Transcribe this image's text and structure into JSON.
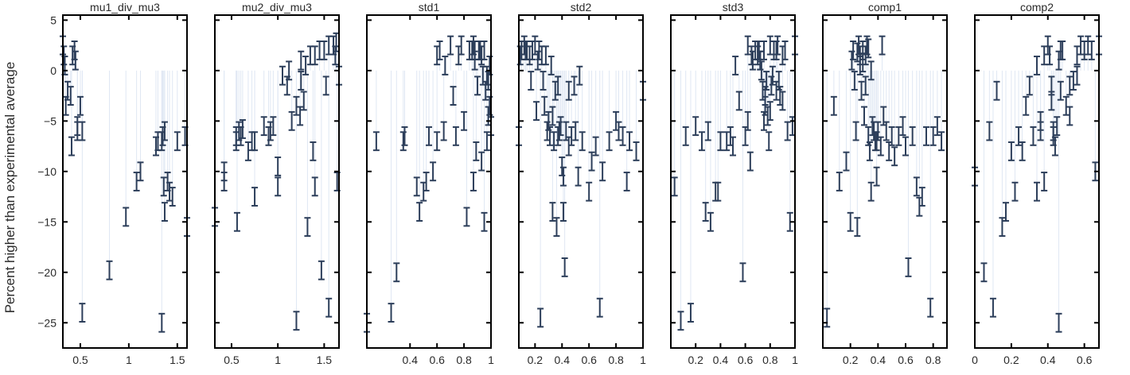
{
  "chart_data": {
    "type": "scatter",
    "ylabel": "Percent higher than experimental average",
    "ylim": [
      -27.5,
      5.5
    ],
    "yticks": [
      5,
      0,
      -5,
      -10,
      -15,
      -20,
      -25
    ],
    "colors": {
      "marker": "#2c3e5a",
      "stem": "#dfe7f3",
      "frame": "#000000",
      "text": "#2a2a2a"
    },
    "grid": false,
    "error_bar_half_width": 0.9,
    "panels": [
      {
        "title": "mu1_div_mu3",
        "xlim": [
          0.32,
          1.6
        ],
        "xticks": [
          0.5,
          1,
          1.5
        ],
        "x": [
          0.32,
          0.33,
          0.34,
          0.35,
          0.37,
          0.4,
          0.42,
          0.45,
          0.47,
          0.41,
          0.44,
          0.5,
          0.52,
          0.47,
          0.52,
          0.8,
          0.97,
          1.08,
          1.12,
          1.28,
          1.3,
          1.35,
          1.37,
          1.4,
          1.42,
          1.45,
          1.5,
          1.58,
          1.6,
          1.34,
          1.37,
          1.36,
          1.34
        ],
        "y": [
          2.5,
          1.5,
          0.5,
          -3.5,
          -2.0,
          -2.5,
          1.5,
          1.0,
          -6.0,
          -7.5,
          2.0,
          -3.5,
          -6.0,
          -5.5,
          -24.0,
          -19.8,
          -14.5,
          -11.0,
          -10.0,
          -7.5,
          -7.0,
          -6.5,
          -6.0,
          -11.0,
          -12.0,
          -12.5,
          -7.0,
          -6.5,
          -15.5,
          -25.0,
          -14.0,
          -11.5,
          -7.0
        ]
      },
      {
        "title": "mu2_div_mu3",
        "xlim": [
          0.32,
          1.66
        ],
        "xticks": [
          0.5,
          1,
          1.5
        ],
        "x": [
          0.32,
          0.42,
          0.55,
          0.58,
          0.6,
          0.68,
          0.72,
          0.75,
          0.85,
          0.9,
          0.92,
          1.0,
          1.05,
          1.1,
          1.15,
          1.2,
          1.25,
          1.3,
          1.35,
          1.4,
          1.45,
          1.5,
          1.55,
          1.6,
          1.62,
          1.66,
          0.56,
          0.75,
          1.0,
          1.2,
          1.32,
          1.4,
          1.47,
          1.55,
          1.64,
          1.25,
          1.28,
          0.42,
          0.55,
          0.62,
          0.95,
          1.38,
          1.52,
          1.63,
          1.12,
          1.24
        ],
        "y": [
          -14.5,
          -10.0,
          -7.0,
          -6.0,
          -6.5,
          -8.0,
          -7.0,
          -7.0,
          -5.5,
          -6.5,
          -6.0,
          -9.5,
          -0.5,
          -1.5,
          -5.0,
          -3.5,
          -1.0,
          0.5,
          1.5,
          1.5,
          2.0,
          2.0,
          2.5,
          2.5,
          1.5,
          -0.5,
          -15.0,
          -12.5,
          -11.5,
          -24.8,
          -15.5,
          -11.5,
          -19.8,
          -23.5,
          -11.0,
          1.0,
          -3.0,
          -11.0,
          -6.5,
          -5.8,
          -5.5,
          -8.0,
          -1.5,
          2.8,
          0.0,
          -4.5
        ]
      },
      {
        "title": "std1",
        "xlim": [
          0.08,
          1.0
        ],
        "xticks": [
          0.4,
          0.6,
          0.8,
          1
        ],
        "x": [
          0.08,
          0.15,
          0.26,
          0.3,
          0.35,
          0.36,
          0.45,
          0.47,
          0.5,
          0.52,
          0.54,
          0.57,
          0.6,
          0.6,
          0.62,
          0.65,
          0.66,
          0.7,
          0.72,
          0.74,
          0.76,
          0.78,
          0.8,
          0.82,
          0.84,
          0.86,
          0.87,
          0.88,
          0.89,
          0.9,
          0.91,
          0.92,
          0.93,
          0.94,
          0.95,
          0.96,
          0.97,
          0.98,
          0.99,
          1.0,
          0.88,
          0.93,
          0.97,
          0.95,
          0.99,
          0.98,
          0.87
        ],
        "y": [
          -25.0,
          -7.0,
          -24.0,
          -20.0,
          -7.0,
          -6.5,
          -11.5,
          -14.0,
          -12.0,
          -11.0,
          -6.5,
          -10.0,
          1.5,
          -7.0,
          2.0,
          -6.0,
          0.5,
          2.5,
          -2.5,
          -6.5,
          1.5,
          2.5,
          -5.0,
          -14.5,
          2.0,
          2.0,
          2.5,
          2.0,
          -8.0,
          -1.5,
          2.0,
          2.0,
          1.5,
          -0.5,
          -15.0,
          -2.0,
          -0.5,
          -1.0,
          -3.5,
          -5.5,
          1.0,
          -9.0,
          -7.0,
          2.0,
          0.5,
          -4.5,
          -11.0
        ]
      },
      {
        "title": "std2",
        "xlim": [
          0.08,
          1.0
        ],
        "xticks": [
          0.2,
          0.4,
          0.6,
          0.8,
          1
        ],
        "x": [
          0.08,
          0.1,
          0.12,
          0.14,
          0.16,
          0.18,
          0.2,
          0.22,
          0.23,
          0.24,
          0.26,
          0.27,
          0.28,
          0.3,
          0.31,
          0.32,
          0.33,
          0.34,
          0.35,
          0.36,
          0.37,
          0.38,
          0.39,
          0.4,
          0.41,
          0.42,
          0.43,
          0.45,
          0.47,
          0.5,
          0.52,
          0.55,
          0.6,
          0.62,
          0.65,
          0.68,
          0.7,
          0.75,
          0.8,
          0.82,
          0.85,
          0.88,
          0.9,
          0.95,
          1.0,
          0.09,
          0.13,
          0.17,
          0.21,
          0.25,
          0.29,
          0.33,
          0.37,
          0.41,
          0.45,
          0.49,
          0.53
        ],
        "y": [
          -6.5,
          2.0,
          2.5,
          2.0,
          1.5,
          2.0,
          2.5,
          1.0,
          2.0,
          -24.5,
          -1.0,
          -3.5,
          1.5,
          -5.0,
          -6.5,
          0.5,
          -14.0,
          -7.0,
          -2.0,
          -15.5,
          -6.5,
          -6.0,
          -5.5,
          -9.5,
          -14.0,
          -19.5,
          -6.0,
          -2.0,
          -6.5,
          -6.0,
          -10.5,
          -7.0,
          -12.0,
          -9.0,
          -7.5,
          -23.5,
          -10.0,
          -7.0,
          -5.0,
          -6.0,
          -6.5,
          -11.0,
          -7.0,
          -8.0,
          -2.0,
          1.5,
          2.0,
          -1.0,
          -4.0,
          1.5,
          -6.0,
          -4.5,
          -1.5,
          -10.5,
          -7.5,
          -1.5,
          -0.5
        ]
      },
      {
        "title": "std3",
        "xlim": [
          0.0,
          1.0
        ],
        "xticks": [
          0.2,
          0.4,
          0.6,
          0.8,
          1
        ],
        "x": [
          0.03,
          0.08,
          0.12,
          0.16,
          0.2,
          0.25,
          0.28,
          0.3,
          0.32,
          0.36,
          0.38,
          0.4,
          0.45,
          0.48,
          0.5,
          0.52,
          0.55,
          0.58,
          0.6,
          0.62,
          0.64,
          0.66,
          0.68,
          0.7,
          0.71,
          0.72,
          0.73,
          0.74,
          0.75,
          0.76,
          0.77,
          0.78,
          0.79,
          0.8,
          0.81,
          0.82,
          0.83,
          0.85,
          0.86,
          0.87,
          0.88,
          0.9,
          0.92,
          0.94,
          0.96,
          0.98,
          1.0,
          0.65,
          0.7,
          0.75,
          0.8,
          0.85,
          0.9,
          0.72,
          0.76,
          0.62
        ],
        "y": [
          -11.5,
          -24.8,
          -6.5,
          -24.0,
          -5.5,
          -7.0,
          -14.0,
          -6.0,
          -15.0,
          -12.0,
          -12.0,
          -7.0,
          -7.0,
          -6.5,
          -7.5,
          0.5,
          -3.0,
          -20.0,
          -6.5,
          -5.0,
          -9.0,
          1.0,
          2.0,
          1.5,
          2.0,
          1.0,
          0.0,
          -2.0,
          2.0,
          -3.5,
          -1.0,
          -4.5,
          -7.0,
          2.5,
          -1.5,
          -0.5,
          2.0,
          2.0,
          2.5,
          -1.0,
          -2.5,
          1.5,
          2.0,
          -6.0,
          -15.0,
          -5.5,
          2.5,
          1.5,
          2.0,
          -5.0,
          -4.0,
          -2.0,
          -3.0,
          1.0,
          -2.5,
          2.5
        ]
      },
      {
        "title": "comp1",
        "xlim": [
          0.0,
          0.9
        ],
        "xticks": [
          0.2,
          0.4,
          0.6,
          0.8
        ],
        "x": [
          0.03,
          0.08,
          0.12,
          0.17,
          0.2,
          0.21,
          0.22,
          0.23,
          0.24,
          0.25,
          0.26,
          0.27,
          0.28,
          0.29,
          0.3,
          0.31,
          0.32,
          0.33,
          0.34,
          0.35,
          0.36,
          0.37,
          0.38,
          0.39,
          0.4,
          0.42,
          0.44,
          0.46,
          0.48,
          0.5,
          0.52,
          0.55,
          0.58,
          0.6,
          0.62,
          0.65,
          0.68,
          0.7,
          0.72,
          0.75,
          0.78,
          0.8,
          0.83,
          0.86,
          0.27,
          0.31,
          0.35,
          0.39,
          0.43,
          0.25,
          0.29,
          0.33
        ],
        "y": [
          -24.5,
          -3.5,
          -11.0,
          -9.0,
          -15.0,
          1.0,
          2.0,
          -1.0,
          -6.0,
          -15.5,
          2.5,
          1.5,
          -2.0,
          2.0,
          -4.5,
          1.5,
          2.5,
          -6.5,
          -8.0,
          -12.0,
          -5.5,
          -6.0,
          -7.0,
          -7.0,
          -6.0,
          -7.5,
          -4.5,
          -6.0,
          -8.0,
          -6.5,
          -8.5,
          -6.5,
          -5.5,
          -7.5,
          -19.5,
          -6.5,
          -11.5,
          -13.5,
          -12.5,
          -6.5,
          -23.5,
          -6.5,
          -5.5,
          -7.0,
          0.5,
          -1.5,
          0.0,
          -10.5,
          2.5,
          1.8,
          0.8,
          2.2
        ]
      },
      {
        "title": "comp2",
        "xlim": [
          0.0,
          0.68
        ],
        "xticks": [
          0,
          0.2,
          0.4,
          0.6
        ],
        "x": [
          0.0,
          0.05,
          0.08,
          0.1,
          0.12,
          0.15,
          0.17,
          0.2,
          0.22,
          0.24,
          0.26,
          0.28,
          0.3,
          0.32,
          0.34,
          0.36,
          0.38,
          0.4,
          0.41,
          0.42,
          0.43,
          0.44,
          0.45,
          0.46,
          0.47,
          0.48,
          0.5,
          0.52,
          0.54,
          0.56,
          0.58,
          0.6,
          0.62,
          0.64,
          0.66,
          0.68,
          0.34,
          0.38,
          0.42,
          0.47,
          0.52,
          0.56,
          0.43,
          0.46,
          0.36
        ],
        "y": [
          -10.5,
          -20.0,
          -6.0,
          -23.5,
          -2.0,
          -15.5,
          -14.0,
          -8.0,
          -12.0,
          -6.5,
          -8.0,
          -3.5,
          -1.5,
          -6.5,
          -12.0,
          -6.0,
          -11.0,
          2.5,
          1.5,
          -1.5,
          -6.0,
          -7.5,
          -5.5,
          -25.0,
          -2.0,
          2.0,
          -3.5,
          -1.5,
          -1.0,
          1.5,
          2.5,
          2.0,
          2.5,
          2.0,
          -10.0,
          2.5,
          0.5,
          1.5,
          -3.0,
          2.0,
          -4.5,
          -0.5,
          -6.5,
          1.0,
          -5.0
        ]
      }
    ]
  }
}
